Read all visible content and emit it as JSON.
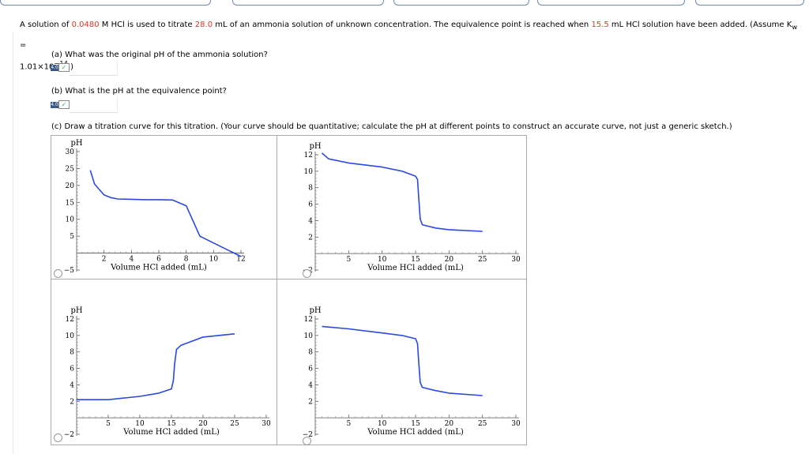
{
  "question": {
    "intro_1": "A solution of ",
    "acid_conc": "0.0480",
    "intro_2": " M HCl is used to titrate ",
    "base_volume": "28.0",
    "intro_3": " mL of an ammonia solution of unknown concentration. The equivalence point is reached when ",
    "equiv_volume": "15.5",
    "intro_4": " mL HCl solution have been added. (Assume K",
    "kw_sub": "w",
    "intro_5": " =",
    "kw_value": "1.01×10",
    "kw_exp": "−14",
    "intro_6": ".)"
  },
  "parts": {
    "a": {
      "label": "(a) What was the original pH of the ammonia solution?",
      "badge": "4.0",
      "value": ""
    },
    "b": {
      "label": "(b) What is the pH at the equivalence point?",
      "badge": "4.0",
      "value": ""
    },
    "c": {
      "label": "(c) Draw a titration curve for this titration. (Your curve should be quantitative; calculate the pH at different points to construct an accurate curve, not just a generic sketch.)"
    }
  },
  "axes_text": {
    "ylabel": "pH",
    "xlabel": "Volume HCl added (mL)"
  },
  "colors": {
    "curve": "#2b48e0",
    "accent": "#d9362b",
    "badge": "#3a5a86"
  },
  "chart_data": [
    {
      "type": "line",
      "ylabel": "pH",
      "xlabel": "Volume HCl added (mL)",
      "xlim": [
        0,
        12
      ],
      "ylim": [
        -5,
        30
      ],
      "xticks": [
        2,
        4,
        6,
        8,
        10,
        12
      ],
      "yticks": [
        -5,
        5,
        10,
        15,
        20,
        25,
        30
      ],
      "series": [
        {
          "x": [
            1.0,
            1.3,
            1.5,
            2.0,
            2.5,
            3.0,
            4.0,
            5.0,
            6.0,
            7.0,
            8.0,
            9.0,
            10.0,
            11.0,
            12.0
          ],
          "y": [
            24.5,
            20.5,
            19.5,
            17.2,
            16.4,
            16.0,
            15.9,
            15.8,
            15.8,
            15.7,
            14.0,
            5.0,
            3.0,
            1.0,
            -1.0
          ]
        }
      ]
    },
    {
      "type": "line",
      "ylabel": "pH",
      "xlabel": "Volume HCl added (mL)",
      "xlim": [
        0,
        30
      ],
      "ylim": [
        -2,
        12
      ],
      "xticks": [
        5,
        10,
        15,
        20,
        25,
        30
      ],
      "yticks": [
        -2,
        2,
        4,
        6,
        8,
        10,
        12
      ],
      "series": [
        {
          "x": [
            1.0,
            2.0,
            5.0,
            10.0,
            13.0,
            15.0,
            15.3,
            15.5,
            15.7,
            16.0,
            18.0,
            20.0,
            25.0
          ],
          "y": [
            12.2,
            11.5,
            11.0,
            10.5,
            10.0,
            9.4,
            9.0,
            6.5,
            4.2,
            3.5,
            3.1,
            2.9,
            2.7
          ]
        }
      ]
    },
    {
      "type": "line",
      "ylabel": "pH",
      "xlabel": "Volume HCl added (mL)",
      "xlim": [
        0,
        30
      ],
      "ylim": [
        -2,
        12
      ],
      "xticks": [
        5,
        10,
        15,
        20,
        25,
        30
      ],
      "yticks": [
        -2,
        2,
        4,
        6,
        8,
        10,
        12
      ],
      "series": [
        {
          "x": [
            0,
            5.0,
            10.0,
            13.0,
            15.0,
            15.3,
            15.5,
            15.8,
            16.5,
            20.0,
            25.0
          ],
          "y": [
            2.2,
            2.2,
            2.6,
            3.0,
            3.5,
            4.5,
            6.5,
            8.3,
            8.8,
            9.8,
            10.2
          ]
        }
      ]
    },
    {
      "type": "line",
      "ylabel": "pH",
      "xlabel": "Volume HCl added (mL)",
      "xlim": [
        0,
        30
      ],
      "ylim": [
        -2,
        12
      ],
      "xticks": [
        5,
        10,
        15,
        20,
        25,
        30
      ],
      "yticks": [
        -2,
        2,
        4,
        6,
        8,
        10,
        12
      ],
      "series": [
        {
          "x": [
            1.0,
            5.0,
            10.0,
            13.0,
            15.0,
            15.3,
            15.5,
            15.7,
            16.0,
            18.0,
            20.0,
            25.0
          ],
          "y": [
            11.1,
            10.8,
            10.3,
            10.0,
            9.6,
            9.0,
            6.5,
            4.3,
            3.7,
            3.3,
            3.0,
            2.7
          ]
        }
      ]
    }
  ]
}
